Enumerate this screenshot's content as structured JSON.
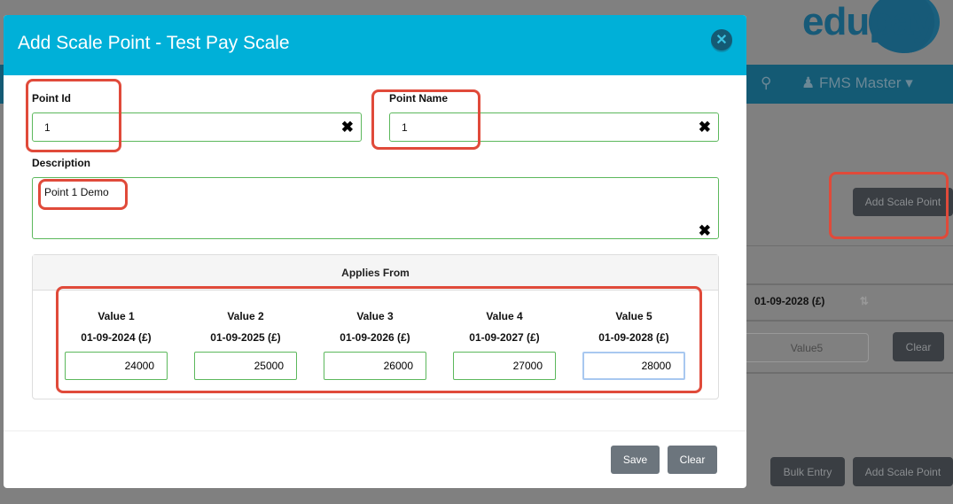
{
  "background": {
    "logo": "edupay",
    "user_name": "FMS Master",
    "add_scale_point_top": "Add Scale Point",
    "column_header": "01-09-2028 (£)",
    "value_placeholder": "Value5",
    "clear_label": "Clear",
    "bulk_entry_label": "Bulk Entry",
    "add_scale_point_bottom": "Add Scale Point"
  },
  "modal": {
    "title": "Add Scale Point - Test Pay Scale",
    "point_id": {
      "label": "Point Id",
      "value": "1"
    },
    "point_name": {
      "label": "Point Name",
      "value": "1"
    },
    "description": {
      "label": "Description",
      "value": "Point 1 Demo"
    },
    "applies_from": "Applies From",
    "values": [
      {
        "label": "Value 1",
        "date": "01-09-2024 (£)",
        "value": "24000"
      },
      {
        "label": "Value 2",
        "date": "01-09-2025 (£)",
        "value": "25000"
      },
      {
        "label": "Value 3",
        "date": "01-09-2026 (£)",
        "value": "26000"
      },
      {
        "label": "Value 4",
        "date": "01-09-2027 (£)",
        "value": "27000"
      },
      {
        "label": "Value 5",
        "date": "01-09-2028 (£)",
        "value": "28000"
      }
    ],
    "save_label": "Save",
    "clear_label": "Clear"
  },
  "colors": {
    "header": "#00b0d8",
    "nav": "#145a74",
    "annotation": "#e04a3a",
    "input_border": "#5cb85c"
  }
}
